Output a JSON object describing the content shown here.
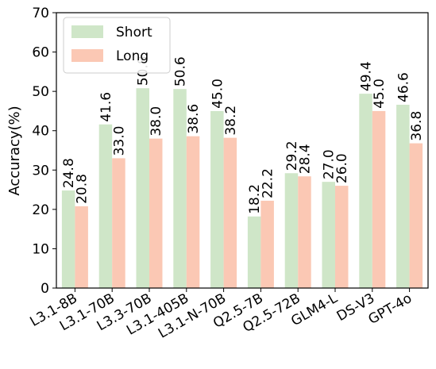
{
  "chart_data": {
    "type": "bar",
    "categories": [
      "L3.1-8B",
      "L3.1-70B",
      "L3.3-70B",
      "L3.1-405B",
      "L3.1-N-70B",
      "Q2.5-7B",
      "Q2.5-72B",
      "GLM4-L",
      "DS-V3",
      "GPT-4o"
    ],
    "series": [
      {
        "name": "Short",
        "color": "#cfe6c8",
        "values": [
          24.8,
          41.6,
          50.8,
          50.6,
          45.0,
          18.2,
          29.2,
          27.0,
          49.4,
          46.6
        ],
        "labels": [
          "24.8",
          "41.6",
          "50.8",
          "50.6",
          "45.0",
          "18.2",
          "29.2",
          "27.0",
          "49.4",
          "46.6"
        ]
      },
      {
        "name": "Long",
        "color": "#fbc8b4",
        "values": [
          20.8,
          33.0,
          38.0,
          38.6,
          38.2,
          22.2,
          28.4,
          26.0,
          45.0,
          36.8
        ],
        "labels": [
          "20.8",
          "33.0",
          "38.0",
          "38.6",
          "38.2",
          "22.2",
          "28.4",
          "26.0",
          "45.0",
          "36.8"
        ]
      }
    ],
    "ylabel": "Accuracy(%)",
    "xlabel": "",
    "ylim": [
      0,
      70
    ],
    "yticks": [
      "0",
      "10",
      "20",
      "30",
      "40",
      "50",
      "60",
      "70"
    ],
    "legend_position": "top-left",
    "grid": false
  }
}
